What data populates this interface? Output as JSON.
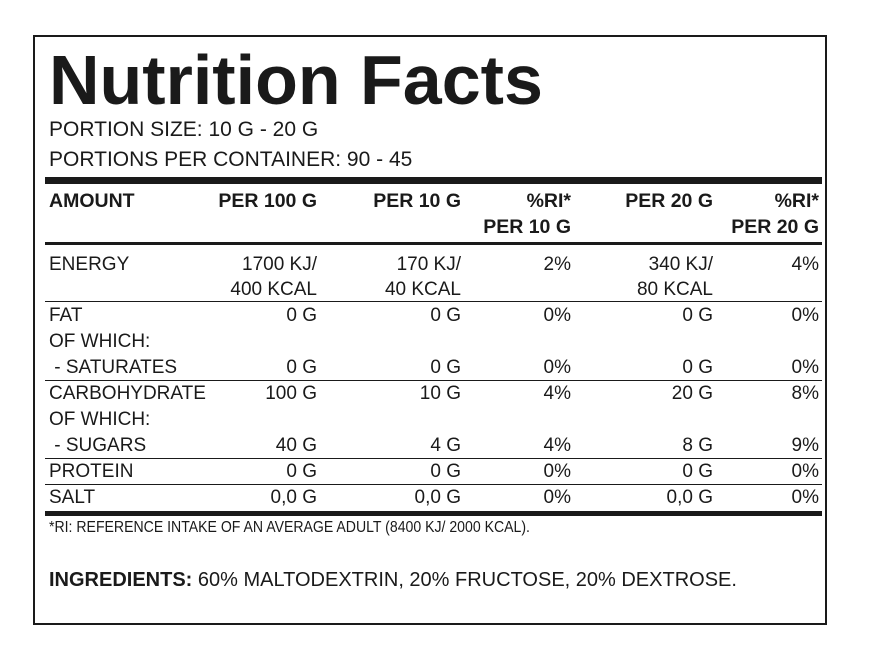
{
  "title": "Nutrition Facts",
  "portion_size": "PORTION SIZE: 10 G - 20 G",
  "portions_per_container": "PORTIONS PER CONTAINER: 90 - 45",
  "headers": {
    "amount": "AMOUNT",
    "per100": "PER 100 G",
    "per10": "PER 10 G",
    "ri10_a": "%RI*",
    "ri10_b": "PER 10 G",
    "per20": "PER 20 G",
    "ri20_a": "%RI*",
    "ri20_b": "PER 20 G"
  },
  "rows": {
    "energy": {
      "name": "ENERGY",
      "per100_a": "1700 KJ/",
      "per100_b": "400 KCAL",
      "per10_a": "170 KJ/",
      "per10_b": "40 KCAL",
      "ri10": "2%",
      "per20_a": "340 KJ/",
      "per20_b": "80 KCAL",
      "ri20": "4%"
    },
    "fat": {
      "name": "FAT",
      "per100": "0 G",
      "per10": "0 G",
      "ri10": "0%",
      "per20": "0 G",
      "ri20": "0%"
    },
    "fat_of_which": "OF WHICH:",
    "saturates": {
      "name": " - SATURATES",
      "per100": "0 G",
      "per10": "0 G",
      "ri10": "0%",
      "per20": "0 G",
      "ri20": "0%"
    },
    "carbohydrate": {
      "name": "CARBOHYDRATE",
      "per100": "100 G",
      "per10": "10 G",
      "ri10": "4%",
      "per20": "20 G",
      "ri20": "8%"
    },
    "carb_of_which": "OF WHICH:",
    "sugars": {
      "name": " - SUGARS",
      "per100": "40 G",
      "per10": "4 G",
      "ri10": "4%",
      "per20": "8 G",
      "ri20": "9%"
    },
    "protein": {
      "name": "PROTEIN",
      "per100": "0 G",
      "per10": "0 G",
      "ri10": "0%",
      "per20": "0 G",
      "ri20": "0%"
    },
    "salt": {
      "name": "SALT",
      "per100": "0,0 G",
      "per10": "0,0 G",
      "ri10": "0%",
      "per20": "0,0 G",
      "ri20": "0%"
    }
  },
  "footnote": "*RI: REFERENCE INTAKE OF AN AVERAGE ADULT (8400 KJ/ 2000 KCAL).",
  "ingredients_label": "INGREDIENTS:",
  "ingredients_text": " 60% MALTODEXTRIN, 20% FRUCTOSE, 20% DEXTROSE."
}
